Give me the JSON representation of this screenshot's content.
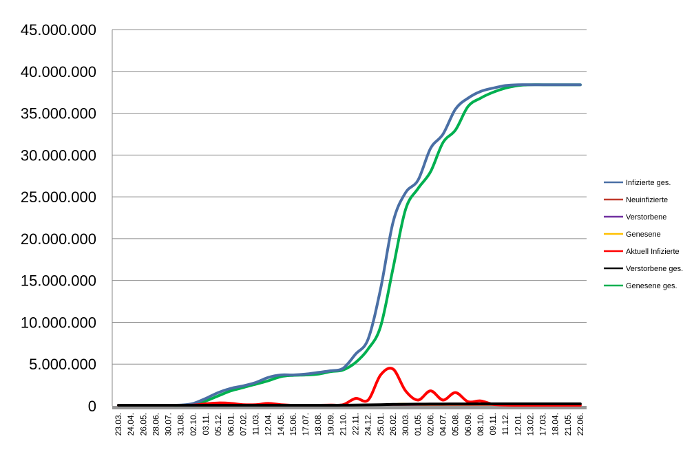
{
  "chart_data": {
    "type": "line",
    "ylim": [
      0,
      45000000
    ],
    "yticks": [
      0,
      5000000,
      10000000,
      15000000,
      20000000,
      25000000,
      30000000,
      35000000,
      40000000,
      45000000
    ],
    "ytick_labels": [
      "0",
      "5.000.000",
      "10.000.000",
      "15.000.000",
      "20.000.000",
      "25.000.000",
      "30.000.000",
      "35.000.000",
      "40.000.000",
      "45.000.000"
    ],
    "grid": true,
    "legend_position": "right",
    "categories": [
      "23.03.",
      "24.04.",
      "26.05.",
      "28.06.",
      "30.07.",
      "31.08.",
      "02.10.",
      "03.11.",
      "05.12.",
      "06.01.",
      "07.02.",
      "11.03.",
      "12.04.",
      "14.05.",
      "15.06.",
      "17.07.",
      "18.08.",
      "19.09.",
      "21.10.",
      "22.11.",
      "24.12.",
      "25.01.",
      "26.02.",
      "30.03.",
      "01.05.",
      "02.06.",
      "04.07.",
      "05.08.",
      "06.09.",
      "08.10.",
      "09.11.",
      "11.12.",
      "12.01.",
      "13.02.",
      "17.03.",
      "18.04.",
      "21.05.",
      "22.06."
    ],
    "series": [
      {
        "name": "Infizierte ges.",
        "color": "#4a6fa5",
        "width": 4,
        "values": [
          0,
          0,
          0,
          0,
          0,
          100000,
          300000,
          900000,
          1600000,
          2100000,
          2400000,
          2800000,
          3400000,
          3700000,
          3700000,
          3800000,
          4000000,
          4200000,
          4500000,
          6200000,
          8000000,
          14000000,
          22000000,
          25500000,
          27000000,
          30800000,
          32500000,
          35500000,
          36800000,
          37600000,
          38000000,
          38300000,
          38400000,
          38400000,
          38400000,
          38400000,
          38400000,
          38400000
        ]
      },
      {
        "name": "Neuinfizierte",
        "color": "#c0392b",
        "width": 1.5,
        "values": [
          0,
          0,
          0,
          0,
          0,
          0,
          0,
          10000,
          15000,
          15000,
          10000,
          10000,
          10000,
          5000,
          3000,
          3000,
          5000,
          10000,
          10000,
          20000,
          30000,
          60000,
          80000,
          40000,
          20000,
          30000,
          20000,
          20000,
          10000,
          10000,
          5000,
          3000,
          2000,
          1000,
          0,
          0,
          0,
          0
        ]
      },
      {
        "name": "Verstorbene",
        "color": "#7030a0",
        "width": 1.5,
        "values": [
          0,
          0,
          0,
          0,
          0,
          0,
          0,
          0,
          0,
          0,
          0,
          0,
          0,
          0,
          0,
          0,
          0,
          0,
          0,
          0,
          0,
          0,
          0,
          0,
          0,
          0,
          0,
          0,
          0,
          0,
          0,
          0,
          0,
          0,
          0,
          0,
          0,
          0
        ]
      },
      {
        "name": "Genesene",
        "color": "#ffc000",
        "width": 1.5,
        "values": [
          0,
          0,
          0,
          0,
          0,
          0,
          0,
          0,
          0,
          0,
          0,
          0,
          0,
          0,
          0,
          0,
          0,
          0,
          0,
          0,
          50000,
          150000,
          250000,
          300000,
          100000,
          50000,
          50000,
          50000,
          30000,
          30000,
          20000,
          10000,
          5000,
          0,
          0,
          0,
          0,
          0
        ]
      },
      {
        "name": "Aktuell Infizierte",
        "color": "#ff0000",
        "width": 4,
        "values": [
          0,
          0,
          0,
          0,
          0,
          50000,
          100000,
          250000,
          350000,
          300000,
          150000,
          150000,
          300000,
          150000,
          50000,
          50000,
          80000,
          100000,
          150000,
          900000,
          700000,
          3700000,
          4400000,
          1800000,
          700000,
          1800000,
          700000,
          1600000,
          500000,
          600000,
          200000,
          100000,
          50000,
          20000,
          10000,
          0,
          0,
          0
        ]
      },
      {
        "name": "Verstorbene ges.",
        "color": "#000000",
        "width": 4,
        "values": [
          0,
          0,
          0,
          0,
          0,
          0,
          0,
          10000,
          20000,
          30000,
          40000,
          50000,
          60000,
          70000,
          70000,
          80000,
          80000,
          80000,
          90000,
          100000,
          120000,
          150000,
          180000,
          200000,
          210000,
          220000,
          230000,
          240000,
          240000,
          250000,
          250000,
          250000,
          250000,
          250000,
          250000,
          250000,
          250000,
          250000
        ]
      },
      {
        "name": "Genesene ges.",
        "color": "#00b050",
        "width": 4,
        "values": [
          0,
          0,
          0,
          0,
          0,
          50000,
          200000,
          600000,
          1200000,
          1800000,
          2200000,
          2600000,
          3000000,
          3500000,
          3650000,
          3700000,
          3800000,
          4100000,
          4300000,
          5200000,
          6800000,
          9500000,
          16500000,
          23500000,
          26000000,
          28000000,
          31500000,
          33000000,
          35800000,
          36800000,
          37500000,
          38000000,
          38300000,
          38400000,
          38400000,
          38400000,
          38400000,
          38400000
        ]
      }
    ]
  }
}
